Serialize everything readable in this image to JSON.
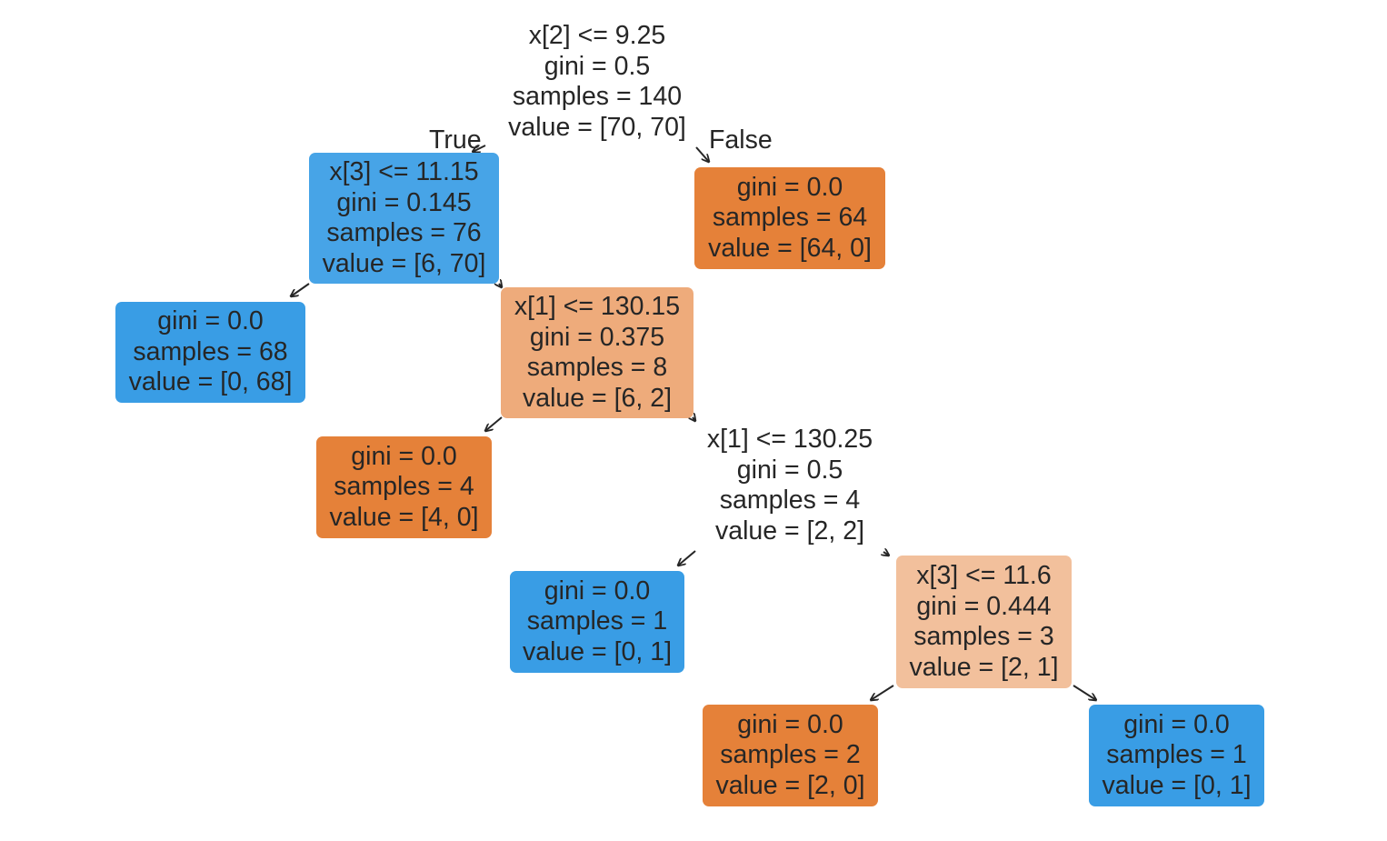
{
  "nodes": [
    {
      "id": "n0",
      "lines": [
        "x[2] <= 9.25",
        "gini = 0.5",
        "samples = 140",
        "value = [70, 70]"
      ],
      "fill": "#ffffff"
    },
    {
      "id": "n1",
      "lines": [
        "x[3] <= 11.15",
        "gini = 0.145",
        "samples = 76",
        "value = [6, 70]"
      ],
      "fill": "#47a4e7"
    },
    {
      "id": "n2",
      "lines": [
        "gini = 0.0",
        "samples = 64",
        "value = [64, 0]"
      ],
      "fill": "#e58139"
    },
    {
      "id": "n3",
      "lines": [
        "gini = 0.0",
        "samples = 68",
        "value = [0, 68]"
      ],
      "fill": "#399de5"
    },
    {
      "id": "n4",
      "lines": [
        "x[1] <= 130.15",
        "gini = 0.375",
        "samples = 8",
        "value = [6, 2]"
      ],
      "fill": "#eeab7b"
    },
    {
      "id": "n5",
      "lines": [
        "gini = 0.0",
        "samples = 4",
        "value = [4, 0]"
      ],
      "fill": "#e58139"
    },
    {
      "id": "n6",
      "lines": [
        "x[1] <= 130.25",
        "gini = 0.5",
        "samples = 4",
        "value = [2, 2]"
      ],
      "fill": "#ffffff"
    },
    {
      "id": "n7",
      "lines": [
        "gini = 0.0",
        "samples = 1",
        "value = [0, 1]"
      ],
      "fill": "#399de5"
    },
    {
      "id": "n8",
      "lines": [
        "x[3] <= 11.6",
        "gini = 0.444",
        "samples = 3",
        "value = [2, 1]"
      ],
      "fill": "#f2c09c"
    },
    {
      "id": "n9",
      "lines": [
        "gini = 0.0",
        "samples = 2",
        "value = [2, 0]"
      ],
      "fill": "#e58139"
    },
    {
      "id": "n10",
      "lines": [
        "gini = 0.0",
        "samples = 1",
        "value = [0, 1]"
      ],
      "fill": "#399de5"
    }
  ],
  "edge_labels": {
    "true_label": "True",
    "false_label": "False"
  },
  "colors": {
    "text": "#262626",
    "arrow": "#262626"
  }
}
